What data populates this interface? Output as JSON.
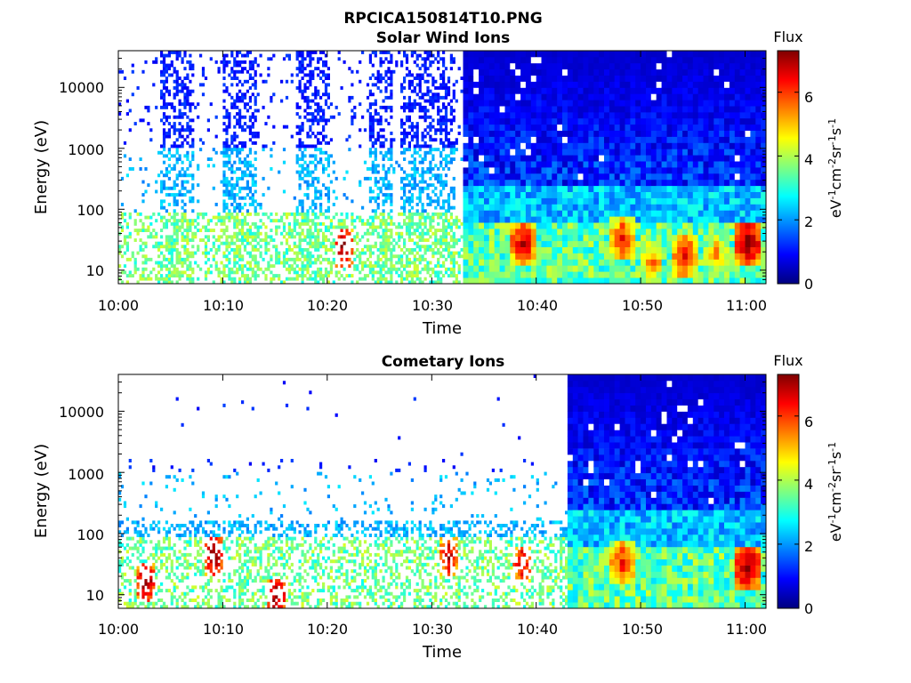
{
  "figure": {
    "title": "RPCICA150814T10.PNG"
  },
  "colorscale": {
    "stops": [
      "#00007f",
      "#0000ff",
      "#007fff",
      "#00ffff",
      "#7fff7f",
      "#ffff00",
      "#ff7f00",
      "#ff0000",
      "#7f0000"
    ]
  },
  "chart_data": [
    {
      "type": "heatmap",
      "title": "Solar Wind Ions",
      "xlabel": "Time",
      "ylabel": "Energy (eV)",
      "xlim": [
        "10:00",
        "11:02"
      ],
      "ylim": [
        6,
        40000
      ],
      "yscale": "log",
      "x_ticks": [
        "10:00",
        "10:10",
        "10:20",
        "10:30",
        "10:40",
        "10:50",
        "11:00"
      ],
      "y_ticks": [
        "10",
        "100",
        "1000",
        "10000"
      ],
      "colorbar": {
        "label": "Flux",
        "units": "eV-1cm-2sr-1s-1",
        "range": [
          0,
          7.3
        ],
        "ticks": [
          "0",
          "2",
          "4",
          "6"
        ]
      },
      "regions": [
        {
          "start": "10:00",
          "end": "10:33",
          "mode": "sparse",
          "bursts": [
            "10:04-10:07",
            "10:10-10:13",
            "10:17-10:20",
            "10:24-10:26",
            "10:27-10:32"
          ]
        },
        {
          "start": "10:33",
          "end": "11:02",
          "mode": "dense"
        }
      ],
      "hot_spots": [
        {
          "time": "10:21.5",
          "energy_eV": 22,
          "flux": 7
        },
        {
          "time": "10:38.5",
          "energy_eV": 25,
          "flux": 6.5
        },
        {
          "time": "10:48",
          "energy_eV": 28,
          "flux": 6
        },
        {
          "time": "10:50.8",
          "energy_eV": 12,
          "flux": 5.2
        },
        {
          "time": "10:54",
          "energy_eV": 15,
          "flux": 6.2
        },
        {
          "time": "10:57",
          "energy_eV": 16,
          "flux": 5
        },
        {
          "time": "11:00",
          "energy_eV": 25,
          "flux": 7
        }
      ]
    },
    {
      "type": "heatmap",
      "title": "Cometary Ions",
      "xlabel": "Time",
      "ylabel": "Energy (eV)",
      "xlim": [
        "10:00",
        "11:02"
      ],
      "ylim": [
        6,
        40000
      ],
      "yscale": "log",
      "x_ticks": [
        "10:00",
        "10:10",
        "10:20",
        "10:30",
        "10:40",
        "10:50",
        "11:00"
      ],
      "y_ticks": [
        "10",
        "100",
        "1000",
        "10000"
      ],
      "colorbar": {
        "label": "Flux",
        "units": "eV-1cm-2sr-1s-1",
        "range": [
          0,
          7.3
        ],
        "ticks": [
          "0",
          "2",
          "4",
          "6"
        ]
      },
      "regions": [
        {
          "start": "10:00",
          "end": "10:43",
          "mode": "sparse"
        },
        {
          "start": "10:43",
          "end": "11:02",
          "mode": "dense"
        }
      ],
      "hot_spots": [
        {
          "time": "10:02.5",
          "energy_eV": 15,
          "flux": 7
        },
        {
          "time": "10:09",
          "energy_eV": 40,
          "flux": 7
        },
        {
          "time": "10:15",
          "energy_eV": 9,
          "flux": 7
        },
        {
          "time": "10:31.5",
          "energy_eV": 40,
          "flux": 6.5
        },
        {
          "time": "10:38.5",
          "energy_eV": 30,
          "flux": 6.5
        },
        {
          "time": "10:48",
          "energy_eV": 28,
          "flux": 6
        },
        {
          "time": "11:00",
          "energy_eV": 25,
          "flux": 7
        }
      ]
    }
  ]
}
